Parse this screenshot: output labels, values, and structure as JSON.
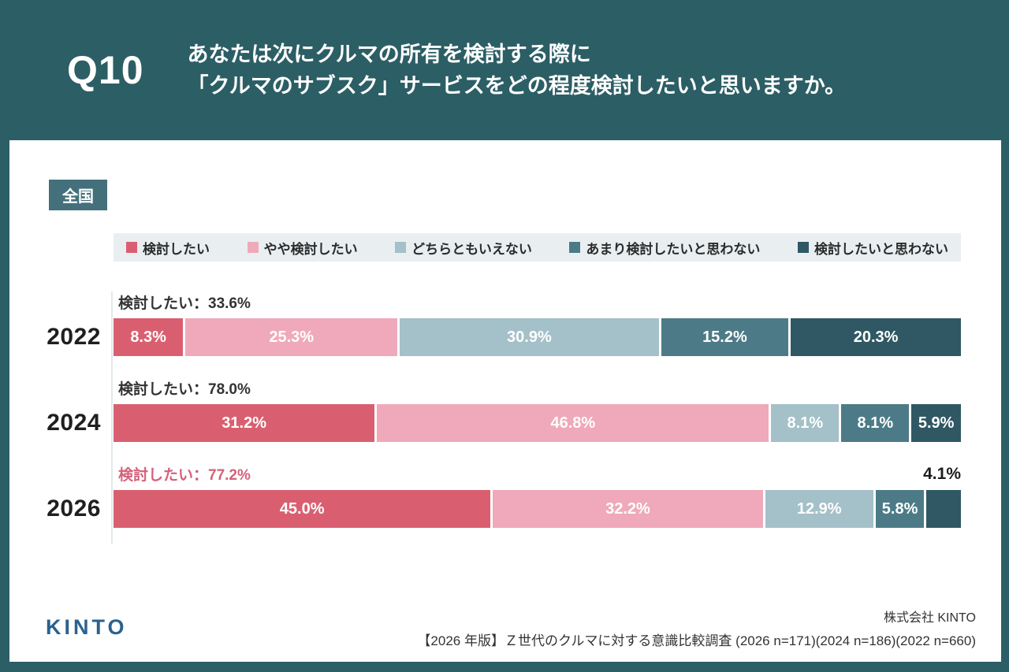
{
  "header": {
    "question_number": "Q10",
    "question_line1": "あなたは次にクルマの所有を検討する際に",
    "question_line2": "「クルマのサブスク」サービスをどの程度検討したいと思いますか。"
  },
  "region_badge": "全国",
  "chart_data": {
    "type": "bar",
    "stacked": true,
    "orientation": "horizontal",
    "unit": "%",
    "xlim": [
      0,
      100
    ],
    "grid": false,
    "legend_position": "top",
    "categories": [
      "2022",
      "2024",
      "2026"
    ],
    "legend": [
      {
        "label": "検討したい",
        "color": "#D95F70"
      },
      {
        "label": "やや検討したい",
        "color": "#EFA9BA"
      },
      {
        "label": "どちらともいえない",
        "color": "#A4C0C8"
      },
      {
        "label": "あまり検討したいと思わない",
        "color": "#4C7B87"
      },
      {
        "label": "検討したいと思わない",
        "color": "#2F5864"
      }
    ],
    "rows": [
      {
        "year": "2022",
        "annotation": "検討したい：33.6%",
        "annotation_color": "#333333",
        "values": [
          8.3,
          25.3,
          30.9,
          15.2,
          20.3
        ],
        "outside_label_index": null
      },
      {
        "year": "2024",
        "annotation": "検討したい：78.0%",
        "annotation_color": "#333333",
        "values": [
          31.2,
          46.8,
          8.1,
          8.1,
          5.9
        ],
        "outside_label_index": null
      },
      {
        "year": "2026",
        "annotation": "検討したい：77.2%",
        "annotation_color": "#D5607B",
        "values": [
          45.0,
          32.2,
          12.9,
          5.8,
          4.1
        ],
        "outside_label_index": 4
      }
    ]
  },
  "footer": {
    "logo_text": "KINTO",
    "company": "株式会社 KINTO",
    "source": "【2026 年版】Ｚ世代のクルマに対する意識比較調査 (2026 n=171)(2024 n=186)(2022 n=660)"
  },
  "colors": {
    "background": "#2C5E65",
    "card": "#FFFFFF",
    "badge": "#44707B",
    "legend_background": "#E9EFF1",
    "highlight_annotation": "#D5607B",
    "logo": "#2A628F"
  }
}
